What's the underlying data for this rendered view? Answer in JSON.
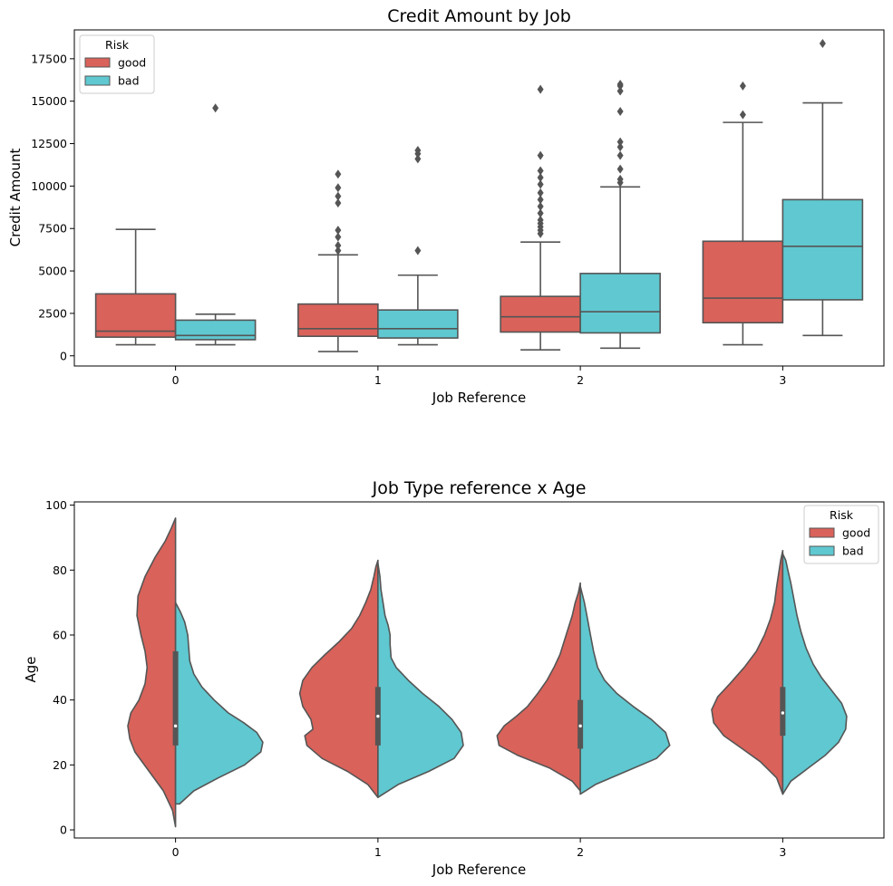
{
  "chart_data": [
    {
      "type": "box",
      "title": "Credit Amount by Job",
      "xlabel": "Job Reference",
      "ylabel": "Credit Amount",
      "categories": [
        "0",
        "1",
        "2",
        "3"
      ],
      "ylim": [
        -600,
        19200
      ],
      "yticks": [
        0,
        2500,
        5000,
        7500,
        10000,
        12500,
        15000,
        17500
      ],
      "legend": {
        "title": "Risk",
        "position": "top-left"
      },
      "series": [
        {
          "name": "good",
          "color": "#d9625a",
          "boxes": [
            {
              "whislo": 650,
              "q1": 1100,
              "med": 1450,
              "q3": 3650,
              "whishi": 7450,
              "fliers": []
            },
            {
              "whislo": 250,
              "q1": 1150,
              "med": 1600,
              "q3": 3050,
              "whishi": 5950,
              "fliers": [
                6200,
                6500,
                7000,
                7400,
                9000,
                9400,
                9900,
                10700
              ]
            },
            {
              "whislo": 350,
              "q1": 1400,
              "med": 2300,
              "q3": 3500,
              "whishi": 6700,
              "fliers": [
                7200,
                7400,
                7600,
                7800,
                8000,
                8400,
                8800,
                9200,
                9600,
                10100,
                10500,
                10900,
                11800,
                15700
              ]
            },
            {
              "whislo": 650,
              "q1": 1950,
              "med": 3400,
              "q3": 6750,
              "whishi": 13750,
              "fliers": [
                14200,
                15900
              ]
            }
          ]
        },
        {
          "name": "bad",
          "color": "#5fc8d0",
          "boxes": [
            {
              "whislo": 650,
              "q1": 950,
              "med": 1200,
              "q3": 2100,
              "whishi": 2450,
              "fliers": [
                14600
              ]
            },
            {
              "whislo": 650,
              "q1": 1050,
              "med": 1600,
              "q3": 2700,
              "whishi": 4750,
              "fliers": [
                6200,
                11600,
                11900,
                12100
              ]
            },
            {
              "whislo": 450,
              "q1": 1350,
              "med": 2600,
              "q3": 4850,
              "whishi": 9950,
              "fliers": [
                10200,
                10400,
                11000,
                11800,
                12300,
                12600,
                14400,
                15600,
                15900,
                16000
              ]
            },
            {
              "whislo": 1200,
              "q1": 3300,
              "med": 6450,
              "q3": 9200,
              "whishi": 14900,
              "fliers": [
                18400
              ]
            }
          ]
        }
      ]
    },
    {
      "type": "violin",
      "title": "Job Type reference x Age",
      "xlabel": "Job Reference",
      "ylabel": "Age",
      "categories": [
        "0",
        "1",
        "2",
        "3"
      ],
      "ylim": [
        -2.5,
        101
      ],
      "yticks": [
        0,
        20,
        40,
        60,
        80,
        100
      ],
      "legend": {
        "title": "Risk",
        "position": "top-right"
      },
      "series": [
        {
          "name": "good",
          "color": "#d9625a",
          "violins": [
            {
              "min": 1,
              "max": 96,
              "profile": [
                [
                  1,
                  0
                ],
                [
                  6,
                  0.03
                ],
                [
                  12,
                  0.12
                ],
                [
                  18,
                  0.26
                ],
                [
                  24,
                  0.4
                ],
                [
                  28,
                  0.45
                ],
                [
                  32,
                  0.47
                ],
                [
                  36,
                  0.44
                ],
                [
                  40,
                  0.36
                ],
                [
                  45,
                  0.3
                ],
                [
                  50,
                  0.28
                ],
                [
                  55,
                  0.3
                ],
                [
                  60,
                  0.34
                ],
                [
                  66,
                  0.38
                ],
                [
                  72,
                  0.37
                ],
                [
                  78,
                  0.3
                ],
                [
                  84,
                  0.2
                ],
                [
                  89,
                  0.1
                ],
                [
                  93,
                  0.04
                ],
                [
                  96,
                  0
                ]
              ]
            },
            {
              "min": 10,
              "max": 83,
              "profile": [
                [
                  10,
                  0
                ],
                [
                  14,
                  0.1
                ],
                [
                  18,
                  0.3
                ],
                [
                  22,
                  0.55
                ],
                [
                  26,
                  0.7
                ],
                [
                  29,
                  0.72
                ],
                [
                  31,
                  0.64
                ],
                [
                  34,
                  0.66
                ],
                [
                  38,
                  0.74
                ],
                [
                  42,
                  0.77
                ],
                [
                  46,
                  0.74
                ],
                [
                  50,
                  0.65
                ],
                [
                  54,
                  0.52
                ],
                [
                  58,
                  0.38
                ],
                [
                  62,
                  0.26
                ],
                [
                  66,
                  0.18
                ],
                [
                  70,
                  0.12
                ],
                [
                  74,
                  0.07
                ],
                [
                  78,
                  0.04
                ],
                [
                  81,
                  0.02
                ],
                [
                  83,
                  0
                ]
              ]
            },
            {
              "min": 12,
              "max": 76,
              "profile": [
                [
                  12,
                  0
                ],
                [
                  15,
                  0.08
                ],
                [
                  19,
                  0.3
                ],
                [
                  23,
                  0.62
                ],
                [
                  26,
                  0.8
                ],
                [
                  29,
                  0.82
                ],
                [
                  32,
                  0.75
                ],
                [
                  35,
                  0.63
                ],
                [
                  38,
                  0.52
                ],
                [
                  42,
                  0.42
                ],
                [
                  46,
                  0.33
                ],
                [
                  50,
                  0.26
                ],
                [
                  54,
                  0.2
                ],
                [
                  58,
                  0.16
                ],
                [
                  62,
                  0.12
                ],
                [
                  66,
                  0.08
                ],
                [
                  70,
                  0.05
                ],
                [
                  73,
                  0.02
                ],
                [
                  76,
                  0
                ]
              ]
            },
            {
              "min": 11,
              "max": 86,
              "profile": [
                [
                  11,
                  0
                ],
                [
                  16,
                  0.06
                ],
                [
                  21,
                  0.22
                ],
                [
                  25,
                  0.4
                ],
                [
                  29,
                  0.58
                ],
                [
                  33,
                  0.68
                ],
                [
                  37,
                  0.7
                ],
                [
                  41,
                  0.64
                ],
                [
                  45,
                  0.52
                ],
                [
                  50,
                  0.38
                ],
                [
                  55,
                  0.26
                ],
                [
                  60,
                  0.18
                ],
                [
                  65,
                  0.12
                ],
                [
                  70,
                  0.08
                ],
                [
                  75,
                  0.06
                ],
                [
                  79,
                  0.04
                ],
                [
                  83,
                  0.02
                ],
                [
                  86,
                  0
                ]
              ]
            }
          ]
        },
        {
          "name": "bad",
          "color": "#5fc8d0",
          "violins": [
            {
              "min": 8,
              "max": 70,
              "profile": [
                [
                  8,
                  0.04
                ],
                [
                  12,
                  0.18
                ],
                [
                  16,
                  0.42
                ],
                [
                  20,
                  0.68
                ],
                [
                  24,
                  0.84
                ],
                [
                  27,
                  0.86
                ],
                [
                  30,
                  0.8
                ],
                [
                  33,
                  0.67
                ],
                [
                  36,
                  0.52
                ],
                [
                  40,
                  0.38
                ],
                [
                  44,
                  0.26
                ],
                [
                  48,
                  0.18
                ],
                [
                  52,
                  0.14
                ],
                [
                  56,
                  0.13
                ],
                [
                  60,
                  0.12
                ],
                [
                  64,
                  0.09
                ],
                [
                  67,
                  0.05
                ],
                [
                  70,
                  0
                ]
              ]
            },
            {
              "min": 10,
              "max": 82,
              "profile": [
                [
                  10,
                  0
                ],
                [
                  14,
                  0.2
                ],
                [
                  18,
                  0.5
                ],
                [
                  22,
                  0.75
                ],
                [
                  26,
                  0.84
                ],
                [
                  30,
                  0.82
                ],
                [
                  34,
                  0.73
                ],
                [
                  38,
                  0.6
                ],
                [
                  42,
                  0.44
                ],
                [
                  46,
                  0.3
                ],
                [
                  50,
                  0.18
                ],
                [
                  53,
                  0.13
                ],
                [
                  57,
                  0.12
                ],
                [
                  60,
                  0.12
                ],
                [
                  63,
                  0.1
                ],
                [
                  66,
                  0.07
                ],
                [
                  70,
                  0.05
                ],
                [
                  74,
                  0.03
                ],
                [
                  78,
                  0.02
                ],
                [
                  82,
                  0
                ]
              ]
            },
            {
              "min": 11,
              "max": 75,
              "profile": [
                [
                  11,
                  0
                ],
                [
                  14,
                  0.15
                ],
                [
                  18,
                  0.45
                ],
                [
                  22,
                  0.75
                ],
                [
                  26,
                  0.88
                ],
                [
                  30,
                  0.84
                ],
                [
                  34,
                  0.7
                ],
                [
                  38,
                  0.52
                ],
                [
                  42,
                  0.36
                ],
                [
                  46,
                  0.24
                ],
                [
                  50,
                  0.17
                ],
                [
                  55,
                  0.13
                ],
                [
                  60,
                  0.1
                ],
                [
                  65,
                  0.07
                ],
                [
                  70,
                  0.04
                ],
                [
                  75,
                  0
                ]
              ]
            },
            {
              "min": 11,
              "max": 85,
              "profile": [
                [
                  11,
                  0
                ],
                [
                  15,
                  0.08
                ],
                [
                  19,
                  0.25
                ],
                [
                  23,
                  0.42
                ],
                [
                  27,
                  0.55
                ],
                [
                  31,
                  0.62
                ],
                [
                  35,
                  0.63
                ],
                [
                  39,
                  0.58
                ],
                [
                  43,
                  0.48
                ],
                [
                  47,
                  0.38
                ],
                [
                  51,
                  0.3
                ],
                [
                  56,
                  0.23
                ],
                [
                  61,
                  0.18
                ],
                [
                  66,
                  0.14
                ],
                [
                  71,
                  0.11
                ],
                [
                  76,
                  0.08
                ],
                [
                  80,
                  0.05
                ],
                [
                  83,
                  0.03
                ],
                [
                  85,
                  0
                ]
              ]
            }
          ],
          "inner_box": [
            {
              "q1": 26,
              "med": 32,
              "q3": 55
            },
            {
              "q1": 26,
              "med": 35,
              "q3": 44
            },
            {
              "q1": 25,
              "med": 32,
              "q3": 40
            },
            {
              "q1": 29,
              "med": 36,
              "q3": 44
            }
          ]
        }
      ]
    }
  ]
}
